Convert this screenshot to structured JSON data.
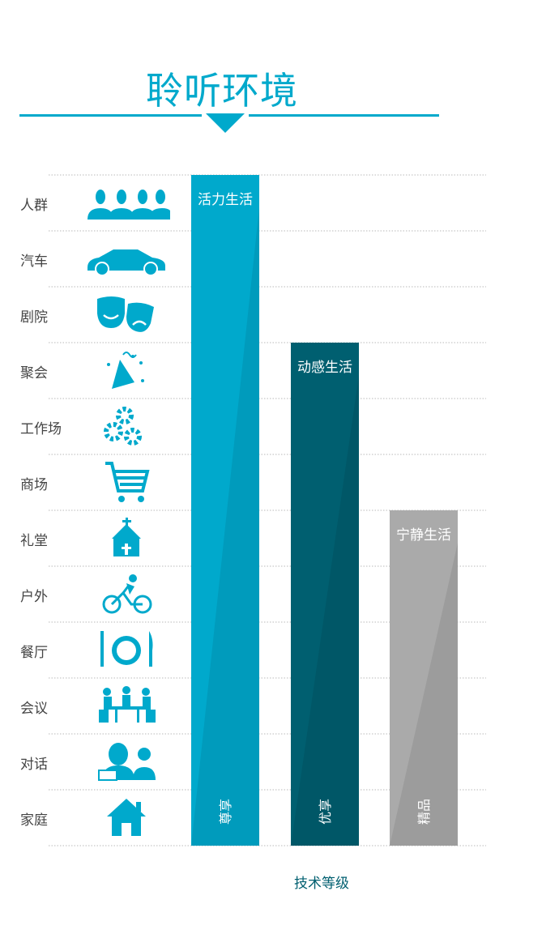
{
  "title": "聆听环境",
  "chart_data": {
    "type": "bar",
    "title": "聆听环境",
    "xlabel": "技术等级",
    "ylabel": "",
    "rows": [
      "人群",
      "汽车",
      "剧院",
      "聚会",
      "工作场",
      "商场",
      "礼堂",
      "户外",
      "餐厅",
      "会议",
      "对话",
      "家庭"
    ],
    "row_icons": [
      "crowd-icon",
      "car-icon",
      "theater-masks-icon",
      "party-hat-icon",
      "gears-icon",
      "shopping-cart-icon",
      "chapel-icon",
      "cyclist-icon",
      "plate-cutlery-icon",
      "meeting-icon",
      "conversation-icon",
      "house-icon"
    ],
    "categories": [
      "尊享",
      "优享",
      "精品"
    ],
    "bar_titles": [
      "活力生活",
      "动感生活",
      "宁静生活"
    ],
    "values": [
      12,
      9,
      6
    ],
    "colors": [
      "#00a9cc",
      "#005f70",
      "#aaaaaa"
    ],
    "grid": true
  }
}
